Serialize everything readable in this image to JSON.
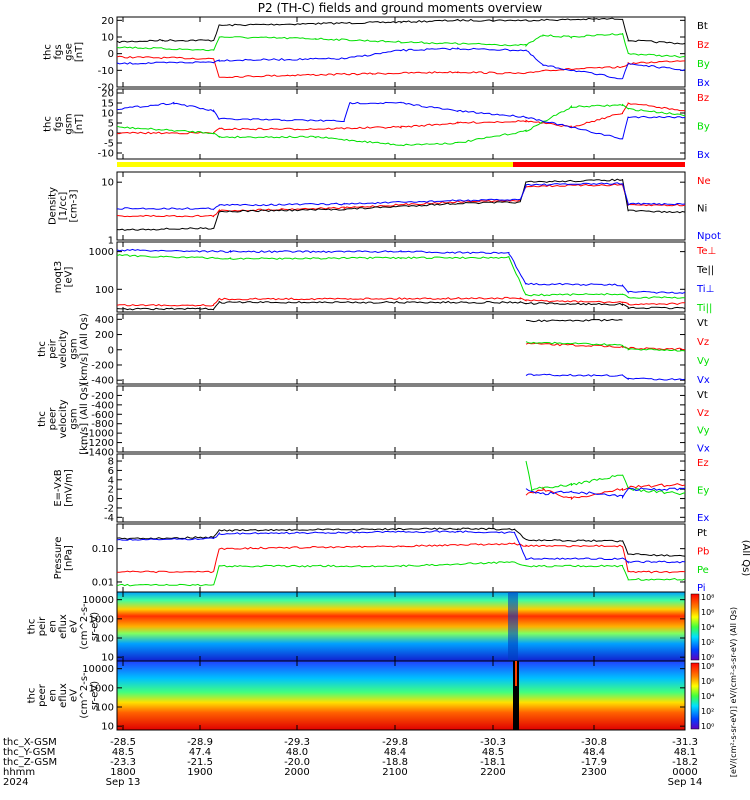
{
  "title": "P2 (TH-C) fields and ground moments overview",
  "colors": {
    "black": "#000000",
    "red": "#ff0000",
    "green": "#00e000",
    "blue": "#0000ff",
    "yellow": "#ffff00",
    "bar_red": "#ff0000"
  },
  "chart_data": [
    {
      "type": "line",
      "panel": "fgs_gse",
      "ylabel": [
        "thc",
        "fgs",
        "gse",
        "[nT]"
      ],
      "ylim": [
        -20,
        22
      ],
      "yticks": [
        "20",
        "10",
        "0",
        "-10",
        "-20"
      ],
      "ytick_values": [
        20,
        10,
        0,
        -10,
        -20
      ],
      "series": [
        {
          "name": "Bt",
          "color": "black",
          "x": [
            0,
            0.08,
            0.17,
            0.18,
            0.35,
            0.5,
            0.6,
            0.72,
            0.89,
            0.9,
            1.0
          ],
          "values": [
            7,
            8,
            8,
            17,
            18,
            19,
            20,
            20,
            21,
            8,
            6
          ]
        },
        {
          "name": "Bz",
          "color": "red",
          "x": [
            0,
            0.17,
            0.18,
            0.3,
            0.45,
            0.6,
            0.72,
            0.75,
            0.89,
            0.9,
            1.0
          ],
          "values": [
            -2,
            -3,
            -14,
            -13,
            -12,
            -11,
            -12,
            -10,
            -8,
            -6,
            -4
          ]
        },
        {
          "name": "By",
          "color": "green",
          "x": [
            0,
            0.17,
            0.18,
            0.35,
            0.5,
            0.6,
            0.72,
            0.75,
            0.8,
            0.89,
            0.9,
            1.0
          ],
          "values": [
            4,
            2,
            10,
            9,
            7,
            6,
            5,
            11,
            10,
            12,
            0,
            -2
          ]
        },
        {
          "name": "Bx",
          "color": "blue",
          "x": [
            0,
            0.17,
            0.18,
            0.4,
            0.5,
            0.6,
            0.72,
            0.75,
            0.89,
            0.9,
            1.0
          ],
          "values": [
            -6,
            -5,
            -4,
            -3,
            2,
            3,
            2,
            -7,
            -15,
            -6,
            -10
          ]
        }
      ]
    },
    {
      "type": "line",
      "panel": "fgs_gsm",
      "ylabel": [
        "thc",
        "fgs",
        "gsm",
        "[nT]"
      ],
      "ylim": [
        -13,
        22
      ],
      "yticks": [
        "20",
        "15",
        "10",
        "5",
        "0",
        "-5",
        "-10"
      ],
      "ytick_values": [
        20,
        15,
        10,
        5,
        0,
        -5,
        -10
      ],
      "series": [
        {
          "name": "Bz",
          "color": "red",
          "x": [
            0,
            0.17,
            0.18,
            0.35,
            0.5,
            0.6,
            0.72,
            0.8,
            0.89,
            0.9,
            1.0
          ],
          "values": [
            0,
            0,
            2,
            2,
            3,
            5,
            6,
            3,
            10,
            15,
            11
          ]
        },
        {
          "name": "By",
          "color": "green",
          "x": [
            0,
            0.17,
            0.18,
            0.35,
            0.5,
            0.6,
            0.72,
            0.8,
            0.89,
            0.9,
            1.0
          ],
          "values": [
            3,
            0,
            -2,
            -2,
            -6,
            -5,
            1,
            13,
            14,
            12,
            9
          ]
        },
        {
          "name": "Bx",
          "color": "blue",
          "x": [
            0,
            0.1,
            0.17,
            0.18,
            0.4,
            0.41,
            0.5,
            0.6,
            0.72,
            0.89,
            0.9,
            1.0
          ],
          "values": [
            12,
            15,
            11,
            7,
            6,
            15,
            15,
            11,
            8,
            -3,
            8,
            8
          ]
        }
      ]
    },
    {
      "type": "line",
      "panel": "density",
      "yscale": "log",
      "ylabel": [
        "Density",
        "[1/cc]",
        "[cm-3]"
      ],
      "ylim": [
        1,
        15
      ],
      "yticks": [
        "10",
        "1"
      ],
      "ytick_values": [
        10,
        1
      ],
      "series": [
        {
          "name": "Ne",
          "color": "red",
          "x": [
            0,
            0.17,
            0.18,
            0.4,
            0.6,
            0.71,
            0.72,
            0.89,
            0.9,
            1.0
          ],
          "values": [
            2.6,
            2.6,
            3.2,
            3.6,
            4.6,
            4.8,
            8.5,
            9,
            4,
            4
          ]
        },
        {
          "name": "Ni",
          "color": "black",
          "x": [
            0,
            0.17,
            0.18,
            0.4,
            0.6,
            0.71,
            0.72,
            0.89,
            0.9,
            1.0
          ],
          "values": [
            1.5,
            1.6,
            3.1,
            3.4,
            4.3,
            4.5,
            10,
            11,
            3.2,
            3
          ]
        },
        {
          "name": "Npot",
          "color": "blue",
          "x": [
            0,
            0.17,
            0.18,
            0.4,
            0.6,
            0.71,
            0.72,
            0.89,
            0.9,
            1.0
          ],
          "values": [
            3.5,
            3.5,
            4,
            4.2,
            4.8,
            5,
            9,
            9.5,
            4.2,
            4.2
          ]
        }
      ]
    },
    {
      "type": "line",
      "panel": "temperature",
      "yscale": "log",
      "ylabel": [
        "moqt3",
        "[eV]"
      ],
      "ylim": [
        25,
        1800
      ],
      "yticks": [
        "1000",
        "100"
      ],
      "ytick_values": [
        1000,
        100
      ],
      "series": [
        {
          "name": "Te⊥",
          "color": "red",
          "x": [
            0,
            0.17,
            0.18,
            0.71,
            0.72,
            0.89,
            0.9,
            1.0
          ],
          "values": [
            38,
            38,
            55,
            58,
            50,
            45,
            40,
            42
          ]
        },
        {
          "name": "Te||",
          "color": "black",
          "x": [
            0,
            0.17,
            0.18,
            0.71,
            0.72,
            0.89,
            0.9,
            1.0
          ],
          "values": [
            30,
            30,
            45,
            45,
            42,
            40,
            32,
            32
          ]
        },
        {
          "name": "Ti⊥",
          "color": "blue",
          "x": [
            0,
            0.2,
            0.5,
            0.69,
            0.72,
            0.89,
            0.9,
            1.0
          ],
          "values": [
            1100,
            1000,
            1000,
            900,
            140,
            130,
            85,
            80
          ]
        },
        {
          "name": "Ti||",
          "color": "green",
          "x": [
            0,
            0.2,
            0.5,
            0.69,
            0.72,
            0.89,
            0.9,
            1.0
          ],
          "values": [
            800,
            650,
            680,
            700,
            70,
            75,
            60,
            60
          ]
        }
      ]
    },
    {
      "type": "line",
      "panel": "peir_velocity",
      "ylabel": [
        "thc",
        "peir",
        "velocity",
        "gsm",
        "[km/s] (All Qs)"
      ],
      "ylim": [
        -450,
        470
      ],
      "yticks": [
        "400",
        "200",
        "0",
        "-200",
        "-400"
      ],
      "ytick_values": [
        400,
        200,
        0,
        -200,
        -400
      ],
      "series": [
        {
          "name": "Vt",
          "color": "black",
          "x": [
            0.72,
            0.89,
            0.9,
            1.0
          ],
          "values": [
            380,
            390,
            null,
            null
          ]
        },
        {
          "name": "Vz",
          "color": "red",
          "x": [
            0.72,
            0.89,
            0.9,
            1.0
          ],
          "values": [
            80,
            40,
            20,
            10
          ]
        },
        {
          "name": "Vy",
          "color": "green",
          "x": [
            0.72,
            0.89,
            0.9,
            1.0
          ],
          "values": [
            100,
            60,
            10,
            -10
          ]
        },
        {
          "name": "Vx",
          "color": "blue",
          "x": [
            0.72,
            0.89,
            0.9,
            1.0
          ],
          "values": [
            -330,
            -340,
            -380,
            -390
          ]
        }
      ]
    },
    {
      "type": "line",
      "panel": "peer_velocity",
      "ylabel": [
        "thc",
        "peer",
        "velocity",
        "gsm",
        "[km/s] (All Qs)"
      ],
      "ylim": [
        -1400,
        0
      ],
      "yticks": [
        "-200",
        "-400",
        "-600",
        "-800",
        "-1000",
        "-1200",
        "-1400"
      ],
      "ytick_values": [
        -200,
        -400,
        -600,
        -800,
        -1000,
        -1200,
        -1400
      ],
      "series": [
        {
          "name": "Vt",
          "color": "black",
          "x": [],
          "values": []
        },
        {
          "name": "Vz",
          "color": "red",
          "x": [],
          "values": []
        },
        {
          "name": "Vy",
          "color": "green",
          "x": [],
          "values": []
        },
        {
          "name": "Vx",
          "color": "blue",
          "x": [],
          "values": []
        }
      ]
    },
    {
      "type": "line",
      "panel": "efield",
      "ylabel": [
        "E=-VxB",
        "[mV/m]"
      ],
      "ylim": [
        -5,
        9.5
      ],
      "yticks": [
        "8",
        "6",
        "4",
        "2",
        "0",
        "-2",
        "-4"
      ],
      "ytick_values": [
        8,
        6,
        4,
        2,
        0,
        -2,
        -4
      ],
      "series": [
        {
          "name": "Ez",
          "color": "red",
          "x": [
            0.72,
            0.75,
            0.8,
            0.89,
            0.9,
            1.0
          ],
          "values": [
            1,
            2,
            0,
            2,
            2.5,
            3
          ]
        },
        {
          "name": "Ey",
          "color": "green",
          "x": [
            0.72,
            0.73,
            0.8,
            0.89,
            0.9,
            1.0
          ],
          "values": [
            8,
            2,
            3,
            5,
            2,
            1
          ]
        },
        {
          "name": "Ex",
          "color": "blue",
          "x": [
            0.72,
            0.75,
            0.8,
            0.89,
            0.9,
            1.0
          ],
          "values": [
            2,
            1,
            1.5,
            0.5,
            2,
            2
          ]
        }
      ]
    },
    {
      "type": "line",
      "panel": "pressure",
      "yscale": "log",
      "ylabel": [
        "Pressure",
        "[nPa]"
      ],
      "ylim": [
        0.005,
        0.55
      ],
      "yticks": [
        "0.10",
        "0.01"
      ],
      "ytick_values": [
        0.1,
        0.01
      ],
      "series": [
        {
          "name": "Pt",
          "color": "black",
          "x": [
            0,
            0.17,
            0.18,
            0.6,
            0.7,
            0.72,
            0.89,
            0.9,
            1.0
          ],
          "values": [
            0.2,
            0.22,
            0.35,
            0.4,
            0.38,
            0.18,
            0.17,
            0.07,
            0.06
          ]
        },
        {
          "name": "Pb",
          "color": "red",
          "x": [
            0,
            0.17,
            0.18,
            0.5,
            0.7,
            0.72,
            0.89,
            0.9,
            1.0
          ],
          "values": [
            0.02,
            0.02,
            0.1,
            0.12,
            0.14,
            0.12,
            0.12,
            0.02,
            0.02
          ]
        },
        {
          "name": "Pe",
          "color": "green",
          "x": [
            0,
            0.17,
            0.18,
            0.5,
            0.7,
            0.72,
            0.89,
            0.9,
            1.0
          ],
          "values": [
            0.008,
            0.008,
            0.03,
            0.03,
            0.04,
            0.03,
            0.03,
            0.012,
            0.012
          ]
        },
        {
          "name": "Pi",
          "color": "blue",
          "x": [
            0,
            0.17,
            0.18,
            0.6,
            0.7,
            0.72,
            0.89,
            0.9,
            1.0
          ],
          "values": [
            0.18,
            0.2,
            0.28,
            0.33,
            0.3,
            0.05,
            0.05,
            0.04,
            0.04
          ]
        }
      ]
    },
    {
      "type": "heatmap",
      "panel": "peir_spectrogram",
      "ylabel": [
        "thc",
        "peir",
        "en",
        "eflux",
        "eV",
        "(cm^2-s-",
        "sr-eV)"
      ],
      "yticks": [
        "10000",
        "1000",
        "100",
        "10"
      ],
      "ytick_values": [
        10000,
        1000,
        100,
        10
      ]
    },
    {
      "type": "heatmap",
      "panel": "peer_spectrogram",
      "ylabel": [
        "thc",
        "peer",
        "en",
        "eflux",
        "eV",
        "(cm^2-s-",
        "sr-eV)"
      ],
      "yticks": [
        "10000",
        "1000",
        "100",
        "10"
      ],
      "ytick_values": [
        10000,
        1000,
        100,
        10
      ]
    }
  ],
  "colorbar": {
    "top_ticks": [
      "10⁸",
      "10⁶",
      "10⁴",
      "10²",
      "10⁰"
    ],
    "bottom_ticks": [
      "10⁸",
      "10⁶",
      "10⁴",
      "10²",
      "10⁰"
    ],
    "label": "[eV/(cm²-s-sr-eV)]  eV/(cm²-s-sr-eV) (All Qs)"
  },
  "side_labels": {
    "pressure": "(All Qs)"
  },
  "footer": {
    "row_labels": [
      "thc_X-GSM",
      "thc_Y-GSM",
      "thc_Z-GSM",
      "hhmm",
      "2024"
    ],
    "columns": [
      [
        "-28.5",
        "48.5",
        "-23.3",
        "1800",
        "Sep 13"
      ],
      [
        "-28.9",
        "47.4",
        "-21.5",
        "1900",
        ""
      ],
      [
        "-29.3",
        "48.0",
        "-20.0",
        "2000",
        ""
      ],
      [
        "-29.8",
        "48.4",
        "-18.8",
        "2100",
        ""
      ],
      [
        "-30.3",
        "48.5",
        "-18.1",
        "2200",
        ""
      ],
      [
        "-30.8",
        "48.4",
        "-17.9",
        "2300",
        ""
      ],
      [
        "-31.3",
        "48.1",
        "-18.2",
        "0000",
        "Sep 14"
      ]
    ]
  }
}
